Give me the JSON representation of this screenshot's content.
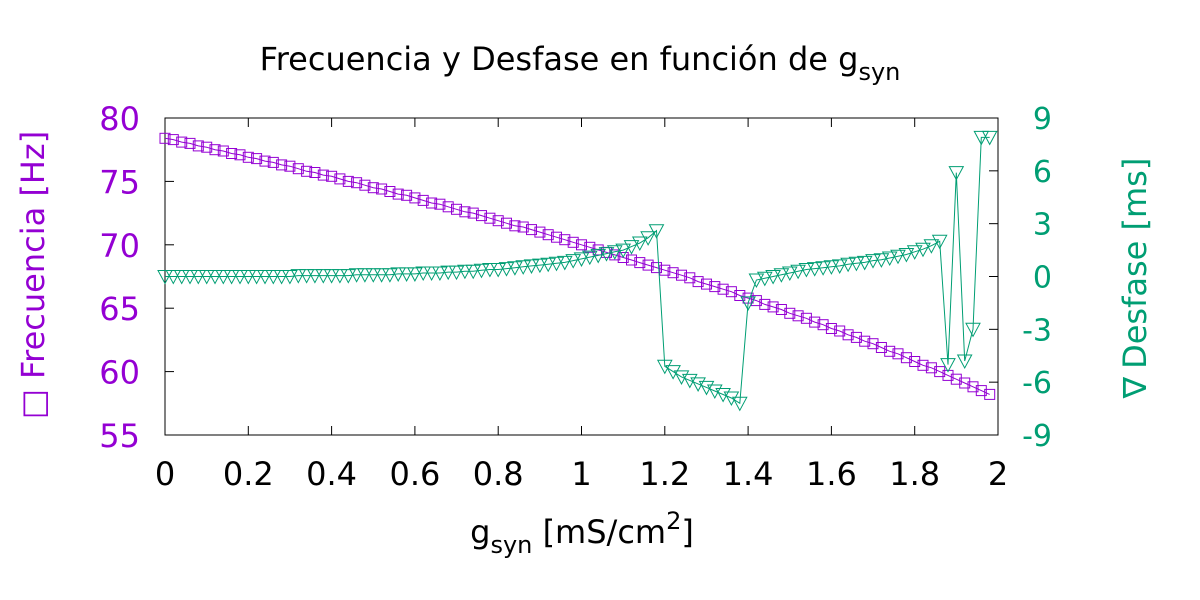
{
  "chart_data": {
    "type": "line",
    "title": {
      "main": "Frecuencia y Desfase en función de g",
      "sub": "syn"
    },
    "xlabel": {
      "main": "g",
      "sub": "syn",
      "rest": " [mS/cm",
      "sup": "2",
      "end": "]"
    },
    "ylabel_left": {
      "marker": "□",
      "text": "Frecuencia  [Hz]"
    },
    "ylabel_right": {
      "marker": "∇",
      "text": "Desfase [ms]"
    },
    "xlim": [
      0,
      2
    ],
    "ylim_left": [
      55,
      80
    ],
    "ylim_right": [
      -9,
      9
    ],
    "x_ticks": [
      {
        "v": 0,
        "label": "0"
      },
      {
        "v": 0.2,
        "label": "0.2"
      },
      {
        "v": 0.4,
        "label": "0.4"
      },
      {
        "v": 0.6,
        "label": "0.6"
      },
      {
        "v": 0.8,
        "label": "0.8"
      },
      {
        "v": 1,
        "label": "1"
      },
      {
        "v": 1.2,
        "label": "1.2"
      },
      {
        "v": 1.4,
        "label": "1.4"
      },
      {
        "v": 1.6,
        "label": "1.6"
      },
      {
        "v": 1.8,
        "label": "1.8"
      },
      {
        "v": 2,
        "label": "2"
      }
    ],
    "y_left_ticks": [
      {
        "v": 55,
        "label": "55"
      },
      {
        "v": 60,
        "label": "60"
      },
      {
        "v": 65,
        "label": "65"
      },
      {
        "v": 70,
        "label": "70"
      },
      {
        "v": 75,
        "label": "75"
      },
      {
        "v": 80,
        "label": "80"
      }
    ],
    "y_right_ticks": [
      {
        "v": -9,
        "label": "-9"
      },
      {
        "v": -6,
        "label": "-6"
      },
      {
        "v": -3,
        "label": "-3"
      },
      {
        "v": 0,
        "label": "0"
      },
      {
        "v": 3,
        "label": "3"
      },
      {
        "v": 6,
        "label": "6"
      },
      {
        "v": 9,
        "label": "9"
      }
    ],
    "colors": {
      "frecuencia": "#9400d3",
      "desfase": "#009e73",
      "text": "#000000"
    },
    "series": [
      {
        "axis": "left",
        "marker": "square",
        "x": [
          0.0,
          0.02,
          0.04,
          0.06,
          0.08,
          0.1,
          0.12,
          0.14,
          0.16,
          0.18,
          0.2,
          0.22,
          0.24,
          0.26,
          0.28,
          0.3,
          0.32,
          0.34,
          0.36,
          0.38,
          0.4,
          0.42,
          0.44,
          0.46,
          0.48,
          0.5,
          0.52,
          0.54,
          0.56,
          0.58,
          0.6,
          0.62,
          0.64,
          0.66,
          0.68,
          0.7,
          0.72,
          0.74,
          0.76,
          0.78,
          0.8,
          0.82,
          0.84,
          0.86,
          0.88,
          0.9,
          0.92,
          0.94,
          0.96,
          0.98,
          1.0,
          1.02,
          1.04,
          1.06,
          1.08,
          1.1,
          1.12,
          1.14,
          1.16,
          1.18,
          1.2,
          1.22,
          1.24,
          1.26,
          1.28,
          1.3,
          1.32,
          1.34,
          1.36,
          1.38,
          1.4,
          1.42,
          1.44,
          1.46,
          1.48,
          1.5,
          1.52,
          1.54,
          1.56,
          1.58,
          1.6,
          1.62,
          1.64,
          1.66,
          1.68,
          1.7,
          1.72,
          1.74,
          1.76,
          1.78,
          1.8,
          1.82,
          1.84,
          1.86,
          1.88,
          1.9,
          1.92,
          1.94,
          1.96,
          1.98
        ],
        "values": [
          78.4,
          78.3,
          78.1,
          78.0,
          77.8,
          77.7,
          77.5,
          77.4,
          77.2,
          77.1,
          76.9,
          76.8,
          76.6,
          76.5,
          76.3,
          76.2,
          76.0,
          75.8,
          75.7,
          75.5,
          75.4,
          75.2,
          75.0,
          74.9,
          74.7,
          74.5,
          74.4,
          74.2,
          74.0,
          73.9,
          73.7,
          73.5,
          73.3,
          73.2,
          73.0,
          72.8,
          72.6,
          72.5,
          72.3,
          72.1,
          71.9,
          71.7,
          71.5,
          71.4,
          71.2,
          71.0,
          70.8,
          70.6,
          70.4,
          70.2,
          70.0,
          69.8,
          69.6,
          69.4,
          69.2,
          69.0,
          68.8,
          68.6,
          68.4,
          68.2,
          68.0,
          67.8,
          67.6,
          67.4,
          67.1,
          66.9,
          66.7,
          66.5,
          66.3,
          66.0,
          65.8,
          65.6,
          65.3,
          65.1,
          64.9,
          64.6,
          64.4,
          64.2,
          63.9,
          63.7,
          63.4,
          63.2,
          62.9,
          62.7,
          62.4,
          62.2,
          61.9,
          61.6,
          61.4,
          61.1,
          60.8,
          60.5,
          60.3,
          60.0,
          59.7,
          59.4,
          59.1,
          58.8,
          58.5,
          58.2
        ]
      },
      {
        "axis": "right",
        "marker": "triangle-down",
        "x": [
          0.0,
          0.02,
          0.04,
          0.06,
          0.08,
          0.1,
          0.12,
          0.14,
          0.16,
          0.18,
          0.2,
          0.22,
          0.24,
          0.26,
          0.28,
          0.3,
          0.32,
          0.34,
          0.36,
          0.38,
          0.4,
          0.42,
          0.44,
          0.46,
          0.48,
          0.5,
          0.52,
          0.54,
          0.56,
          0.58,
          0.6,
          0.62,
          0.64,
          0.66,
          0.68,
          0.7,
          0.72,
          0.74,
          0.76,
          0.78,
          0.8,
          0.82,
          0.84,
          0.86,
          0.88,
          0.9,
          0.92,
          0.94,
          0.96,
          0.98,
          1.0,
          1.02,
          1.04,
          1.06,
          1.08,
          1.1,
          1.12,
          1.14,
          1.16,
          1.18,
          1.2,
          1.22,
          1.24,
          1.26,
          1.28,
          1.3,
          1.32,
          1.34,
          1.36,
          1.38,
          1.4,
          1.42,
          1.44,
          1.46,
          1.48,
          1.5,
          1.52,
          1.54,
          1.56,
          1.58,
          1.6,
          1.62,
          1.64,
          1.66,
          1.68,
          1.7,
          1.72,
          1.74,
          1.76,
          1.78,
          1.8,
          1.82,
          1.84,
          1.86,
          1.88,
          1.9,
          1.92,
          1.94,
          1.96,
          1.98
        ],
        "values": [
          0.0,
          0.0,
          0.0,
          0.0,
          0.0,
          0.0,
          0.0,
          0.0,
          0.0,
          0.0,
          0.0,
          0.0,
          0.0,
          0.0,
          0.0,
          0.0,
          0.05,
          0.05,
          0.05,
          0.05,
          0.05,
          0.05,
          0.05,
          0.1,
          0.1,
          0.1,
          0.1,
          0.1,
          0.15,
          0.15,
          0.15,
          0.2,
          0.2,
          0.2,
          0.25,
          0.25,
          0.3,
          0.3,
          0.35,
          0.4,
          0.4,
          0.45,
          0.5,
          0.55,
          0.6,
          0.65,
          0.7,
          0.75,
          0.8,
          0.9,
          1.0,
          1.1,
          1.2,
          1.3,
          1.4,
          1.5,
          1.7,
          1.9,
          2.2,
          2.6,
          -5.1,
          -5.4,
          -5.7,
          -5.9,
          -6.1,
          -6.3,
          -6.5,
          -6.7,
          -6.9,
          -7.2,
          -1.5,
          -0.2,
          -0.1,
          0.0,
          0.1,
          0.2,
          0.3,
          0.4,
          0.45,
          0.5,
          0.55,
          0.6,
          0.7,
          0.75,
          0.8,
          0.9,
          0.95,
          1.05,
          1.15,
          1.25,
          1.4,
          1.55,
          1.75,
          2.0,
          -5.0,
          5.9,
          -4.8,
          -3.0,
          7.9,
          7.9
        ]
      }
    ]
  }
}
